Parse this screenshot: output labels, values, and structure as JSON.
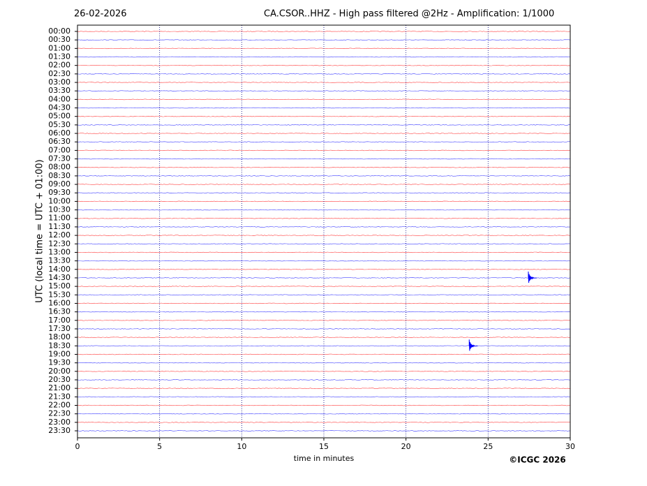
{
  "chart_data": {
    "type": "helicorder",
    "date": "26-02-2026",
    "title": "CA.CSOR..HHZ - High pass filtered @2Hz - Amplification: 1/1000",
    "xlabel": "time in minutes",
    "ylabel": "UTC (local time = UTC + 01:00)",
    "credit": "©ICGC 2026",
    "categories": [
      "00:00",
      "00:30",
      "01:00",
      "01:30",
      "02:00",
      "02:30",
      "03:00",
      "03:30",
      "04:00",
      "04:30",
      "05:00",
      "05:30",
      "06:00",
      "06:30",
      "07:00",
      "07:30",
      "08:00",
      "08:30",
      "09:00",
      "09:30",
      "10:00",
      "10:30",
      "11:00",
      "11:30",
      "12:00",
      "12:30",
      "13:00",
      "13:30",
      "14:00",
      "14:30",
      "15:00",
      "15:30",
      "16:00",
      "16:30",
      "17:00",
      "17:30",
      "18:00",
      "18:30",
      "19:00",
      "19:30",
      "20:00",
      "20:30",
      "21:00",
      "21:30",
      "22:00",
      "22:30",
      "23:00",
      "23:30"
    ],
    "colors": [
      "#ff0000",
      "#0000ff"
    ],
    "xlim": [
      0,
      30
    ],
    "xticks": [
      0,
      5,
      10,
      15,
      20,
      25,
      30
    ],
    "grid": true,
    "events": [
      {
        "row": "14:30",
        "x": 27.45
      },
      {
        "row": "18:30",
        "x": 23.85
      }
    ]
  }
}
